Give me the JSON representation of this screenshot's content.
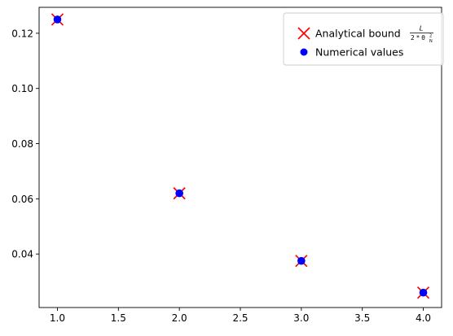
{
  "chart_data": {
    "type": "scatter",
    "x": [
      1.0,
      2.0,
      3.0,
      4.0
    ],
    "series": [
      {
        "name": "Analytical bound",
        "name_fraction": {
          "numerator": "L",
          "denominator": "2 * θ",
          "denominator_subscript": "N",
          "denominator_superscript": "2"
        },
        "marker": "x",
        "color": "#ff0000",
        "values": [
          0.125,
          0.062,
          0.0375,
          0.026
        ]
      },
      {
        "name": "Numerical values",
        "marker": "circle",
        "color": "#0000ff",
        "values": [
          0.125,
          0.062,
          0.0375,
          0.026
        ]
      }
    ],
    "xlim": [
      0.85,
      4.15
    ],
    "ylim": [
      0.0206,
      0.1294
    ],
    "xticks": [
      "1.0",
      "1.5",
      "2.0",
      "2.5",
      "3.0",
      "3.5",
      "4.0"
    ],
    "xtick_values": [
      1.0,
      1.5,
      2.0,
      2.5,
      3.0,
      3.5,
      4.0
    ],
    "yticks": [
      "0.04",
      "0.06",
      "0.08",
      "0.10",
      "0.12"
    ],
    "ytick_values": [
      0.04,
      0.06,
      0.08,
      0.1,
      0.12
    ],
    "grid": false,
    "legend_position": "upper-right"
  }
}
